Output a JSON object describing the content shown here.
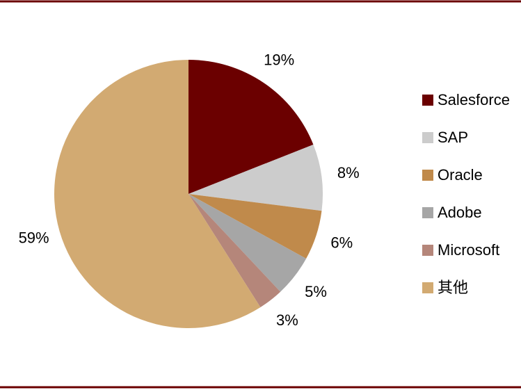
{
  "chart_data": {
    "type": "pie",
    "categories": [
      "Salesforce",
      "SAP",
      "Oracle",
      "Adobe",
      "Microsoft",
      "其他"
    ],
    "values": [
      19,
      8,
      6,
      5,
      3,
      59
    ],
    "value_labels": [
      "19%",
      "8%",
      "6%",
      "5%",
      "3%",
      "59%"
    ],
    "colors": [
      "#6b0000",
      "#cccccc",
      "#c08a4b",
      "#a6a6a6",
      "#b5867a",
      "#d2aa72"
    ],
    "legend": "right"
  }
}
